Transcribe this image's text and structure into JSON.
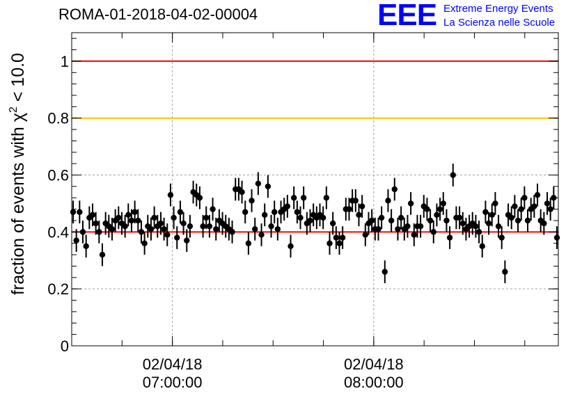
{
  "chart_data": {
    "type": "scatter",
    "title": "ROMA-01-2018-04-02-00004",
    "ylabel": "fraction of events with χ² < 10.0",
    "ylabel_parts": {
      "prefix": "fraction of events with ",
      "symbol": "χ",
      "sup": "2",
      "suffix": " < 10.0"
    },
    "ylim": [
      0,
      1.1
    ],
    "yticks": [
      {
        "value": 0,
        "label": "0"
      },
      {
        "value": 0.2,
        "label": "0.2"
      },
      {
        "value": 0.4,
        "label": "0.4"
      },
      {
        "value": 0.6,
        "label": "0.6"
      },
      {
        "value": 0.8,
        "label": "0.8"
      },
      {
        "value": 1,
        "label": "1"
      }
    ],
    "xlim_minutes": [
      0,
      145
    ],
    "xticks": [
      {
        "minutes": 30,
        "date": "02/04/18",
        "time": "07:00:00"
      },
      {
        "minutes": 90,
        "date": "02/04/18",
        "time": "08:00:00"
      }
    ],
    "grid": true,
    "reference_lines": [
      {
        "value": 1.0,
        "color": "#ff0000"
      },
      {
        "value": 0.8,
        "color": "#ffc000"
      },
      {
        "value": 0.4,
        "color": "#ff0000"
      }
    ],
    "y": [
      0.47,
      0.37,
      0.47,
      0.4,
      0.35,
      0.45,
      0.46,
      0.43,
      0.4,
      0.32,
      0.43,
      0.42,
      0.41,
      0.44,
      0.45,
      0.43,
      0.42,
      0.46,
      0.44,
      0.47,
      0.44,
      0.4,
      0.36,
      0.42,
      0.41,
      0.45,
      0.42,
      0.43,
      0.41,
      0.39,
      0.53,
      0.45,
      0.38,
      0.47,
      0.43,
      0.37,
      0.42,
      0.54,
      0.53,
      0.52,
      0.42,
      0.45,
      0.42,
      0.48,
      0.41,
      0.44,
      0.43,
      0.42,
      0.41,
      0.4,
      0.55,
      0.55,
      0.54,
      0.47,
      0.36,
      0.51,
      0.41,
      0.57,
      0.39,
      0.46,
      0.56,
      0.42,
      0.47,
      0.41,
      0.47,
      0.48,
      0.49,
      0.35,
      0.52,
      0.47,
      0.45,
      0.52,
      0.43,
      0.44,
      0.46,
      0.45,
      0.46,
      0.45,
      0.52,
      0.36,
      0.43,
      0.38,
      0.36,
      0.38,
      0.48,
      0.48,
      0.51,
      0.51,
      0.46,
      0.49,
      0.39,
      0.43,
      0.44,
      0.41,
      0.41,
      0.45,
      0.26,
      0.51,
      0.44,
      0.55,
      0.41,
      0.45,
      0.41,
      0.42,
      0.5,
      0.39,
      0.42,
      0.42,
      0.49,
      0.48,
      0.44,
      0.4,
      0.46,
      0.48,
      0.5,
      0.44,
      0.38,
      0.6,
      0.45,
      0.45,
      0.43,
      0.41,
      0.42,
      0.43,
      0.42,
      0.4,
      0.35,
      0.47,
      0.43,
      0.46,
      0.5,
      0.42,
      0.38,
      0.26,
      0.46,
      0.45,
      0.49,
      0.44,
      0.48,
      0.52,
      0.44,
      0.48,
      0.49,
      0.53,
      0.44,
      0.43,
      0.5,
      0.48,
      0.52,
      0.38
    ],
    "y_error": 0.04
  },
  "logo": {
    "mark": "EEE",
    "line1": "Extreme Energy Events",
    "line2": "La Scienza nelle Scuole"
  },
  "colors": {
    "marker": "#000000",
    "grid": "#a0a0a0",
    "brand": "#0000ff"
  }
}
